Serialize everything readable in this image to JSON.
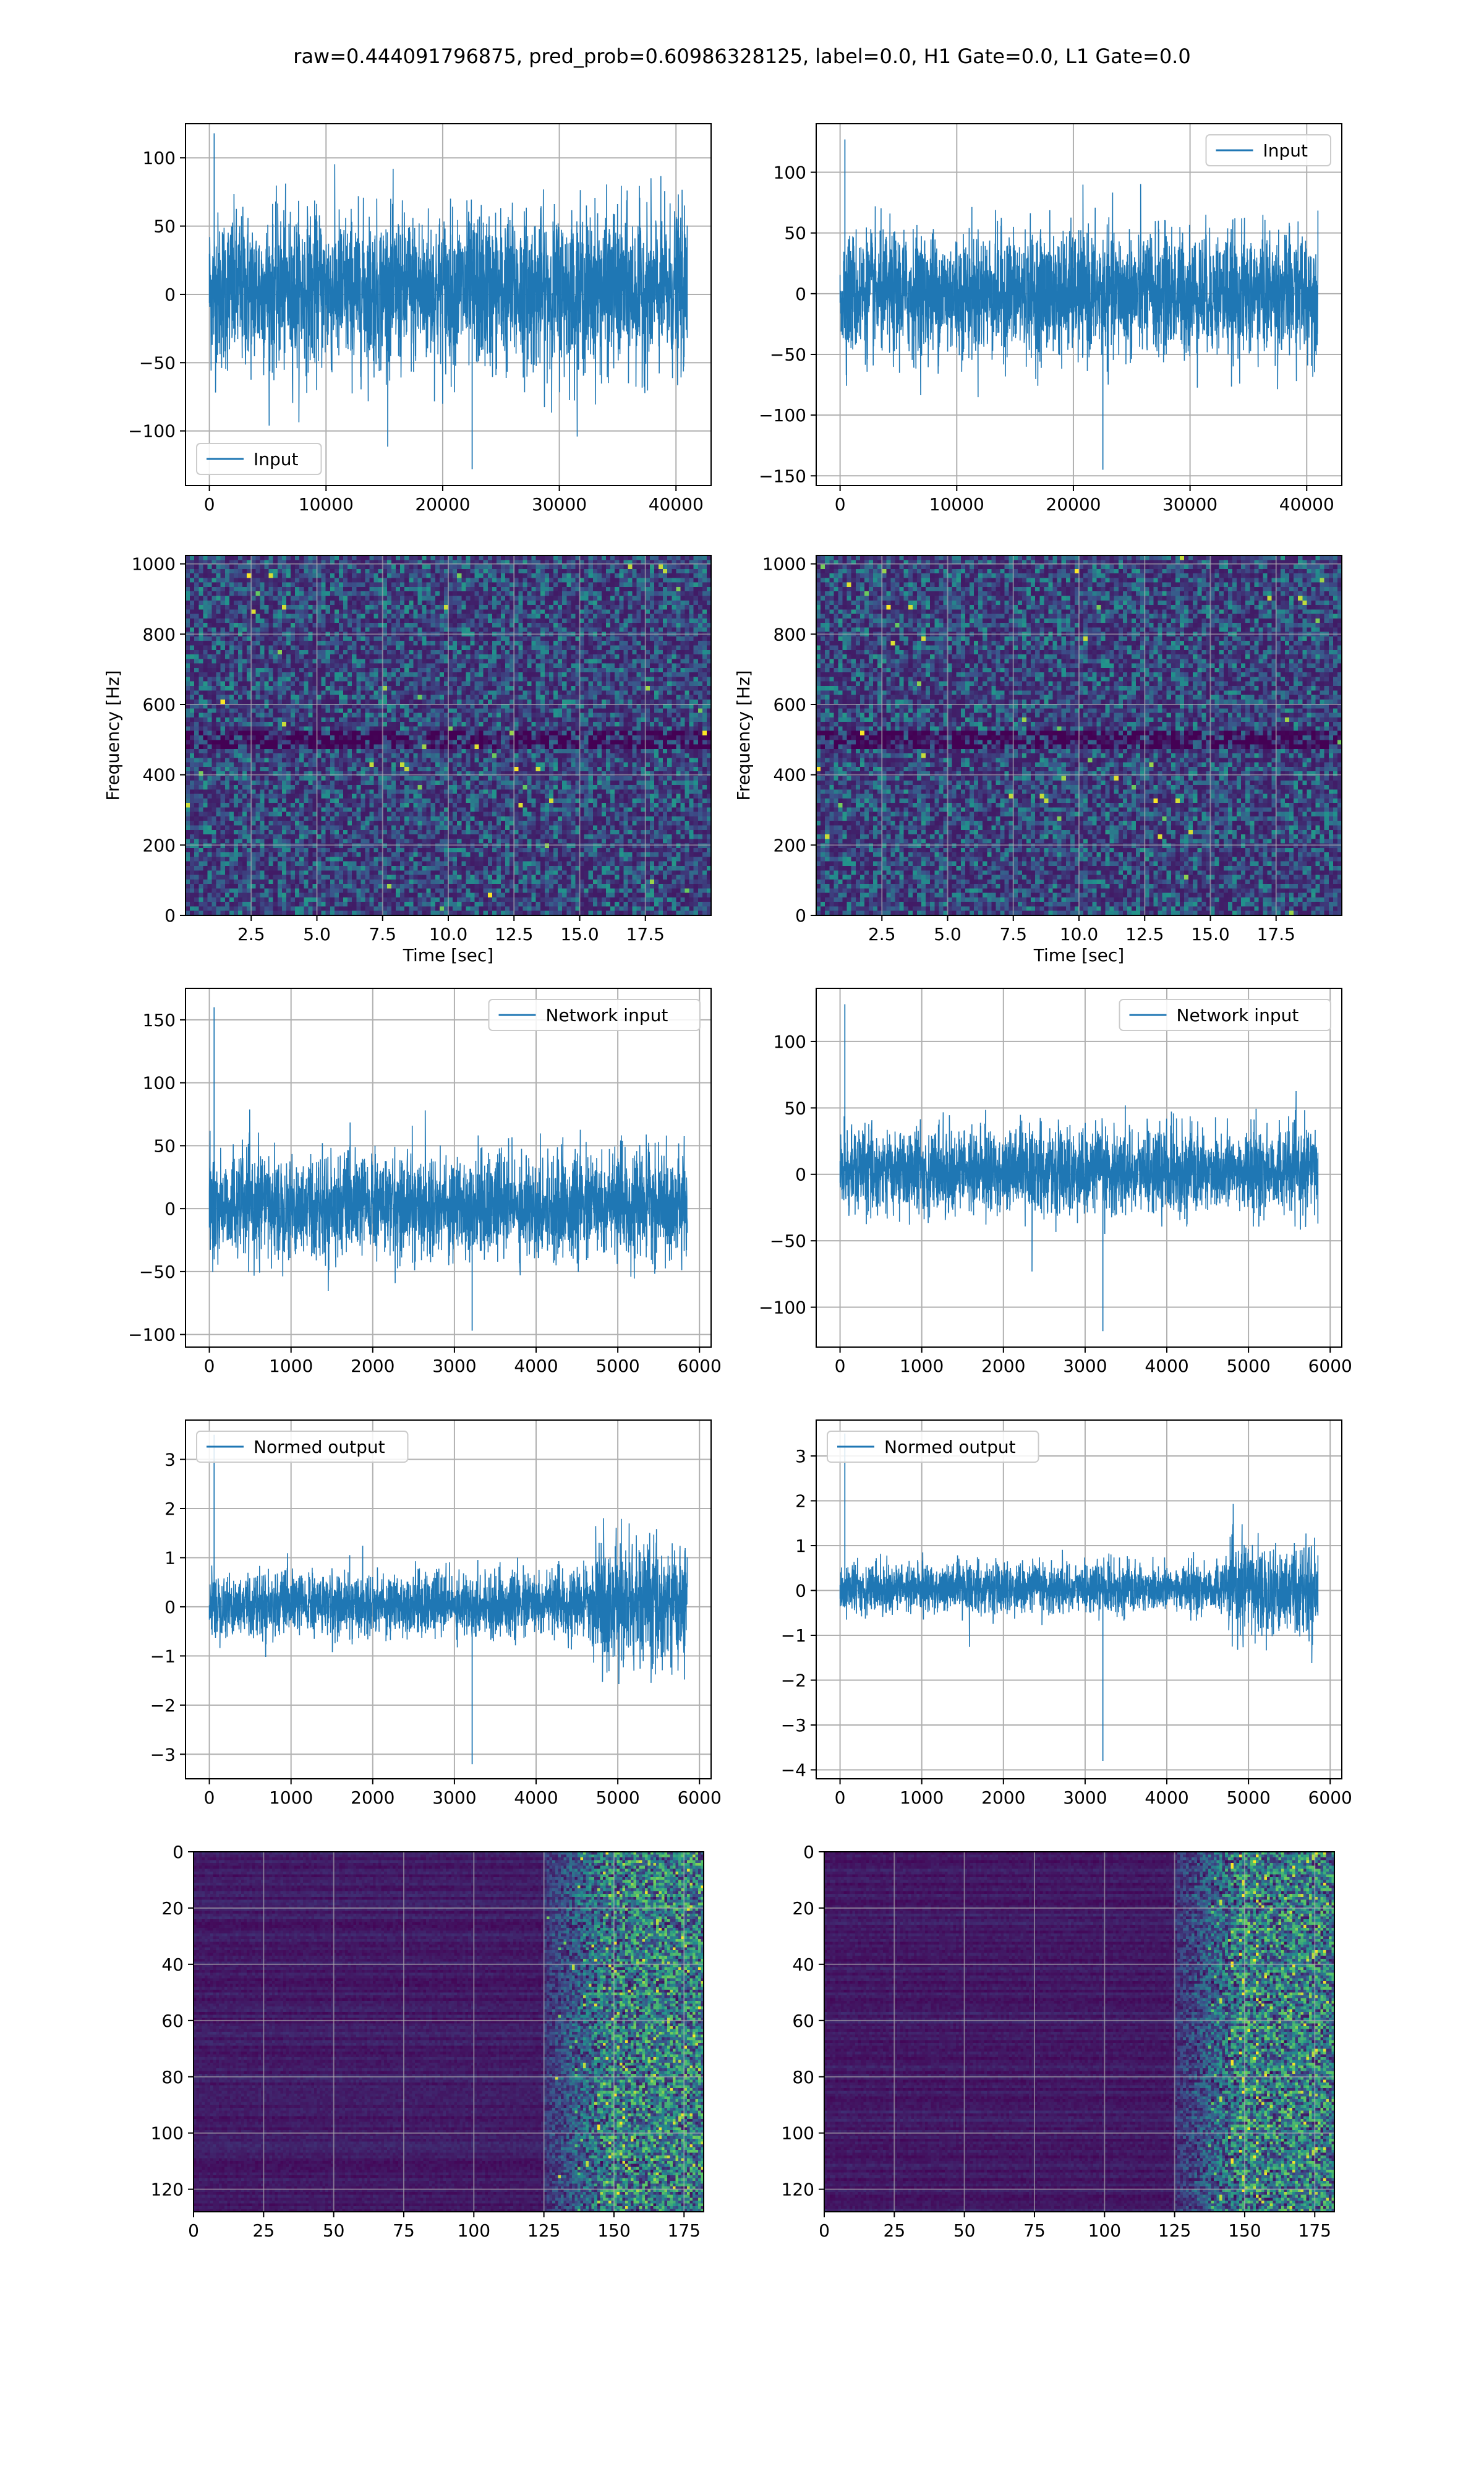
{
  "figure": {
    "suptitle": "raw=0.444091796875, pred_prob=0.60986328125, label=0.0, H1 Gate=0.0, L1 Gate=0.0",
    "line_color": "#1f77b4",
    "grid_color": "#b0b0b0"
  },
  "chart_data": [
    {
      "id": "input-h1",
      "type": "line",
      "title": "",
      "xlabel": "",
      "ylabel": "",
      "legend": {
        "label": "Input",
        "location": "lower-left"
      },
      "series": [
        {
          "name": "Input",
          "n_samples": 40960,
          "x_range": [
            0,
            40960
          ],
          "typical_amplitude": [
            -65,
            70
          ],
          "min": -128,
          "max": 118
        }
      ],
      "xlim": [
        -2048,
        43008
      ],
      "ylim": [
        -140,
        125
      ],
      "xticks": [
        0,
        10000,
        20000,
        30000,
        40000
      ],
      "yticks": [
        -100,
        -50,
        0,
        50,
        100
      ],
      "grid": true
    },
    {
      "id": "input-l1",
      "type": "line",
      "title": "",
      "xlabel": "",
      "ylabel": "",
      "legend": {
        "label": "Input",
        "location": "upper-right"
      },
      "series": [
        {
          "name": "Input",
          "n_samples": 40960,
          "x_range": [
            0,
            40960
          ],
          "typical_amplitude": [
            -60,
            60
          ],
          "min": -145,
          "max": 127
        }
      ],
      "xlim": [
        -2048,
        43008
      ],
      "ylim": [
        -158,
        140
      ],
      "xticks": [
        0,
        10000,
        20000,
        30000,
        40000
      ],
      "yticks": [
        -150,
        -100,
        -50,
        0,
        50,
        100
      ],
      "grid": true
    },
    {
      "id": "spectrogram-h1",
      "type": "heatmap",
      "title": "",
      "xlabel": "Time [sec]",
      "ylabel": "Frequency [Hz]",
      "xlim": [
        0,
        20
      ],
      "ylim": [
        0,
        1024
      ],
      "xticks": [
        2.5,
        5.0,
        7.5,
        10.0,
        12.5,
        15.0,
        17.5
      ],
      "xtick_labels": [
        "2.5",
        "5.0",
        "7.5",
        "10.0",
        "12.5",
        "15.0",
        "17.5"
      ],
      "yticks": [
        0,
        200,
        400,
        600,
        800,
        1000
      ],
      "colormap": "viridis",
      "grid": true,
      "cells": {
        "cols": 120,
        "rows": 80
      },
      "dark_band_hz": [
        470,
        520
      ]
    },
    {
      "id": "spectrogram-l1",
      "type": "heatmap",
      "title": "",
      "xlabel": "Time [sec]",
      "ylabel": "Frequency [Hz]",
      "xlim": [
        0,
        20
      ],
      "ylim": [
        0,
        1024
      ],
      "xticks": [
        2.5,
        5.0,
        7.5,
        10.0,
        12.5,
        15.0,
        17.5
      ],
      "xtick_labels": [
        "2.5",
        "5.0",
        "7.5",
        "10.0",
        "12.5",
        "15.0",
        "17.5"
      ],
      "yticks": [
        0,
        200,
        400,
        600,
        800,
        1000
      ],
      "colormap": "viridis",
      "grid": true,
      "cells": {
        "cols": 120,
        "rows": 80
      },
      "dark_band_hz": [
        470,
        520
      ]
    },
    {
      "id": "network-input-h1",
      "type": "line",
      "title": "",
      "xlabel": "",
      "ylabel": "",
      "legend": {
        "label": "Network input",
        "location": "upper-right"
      },
      "series": [
        {
          "name": "Network input",
          "n_samples": 5850,
          "x_range": [
            0,
            5850
          ],
          "typical_amplitude": [
            -45,
            50
          ],
          "min": -97,
          "max": 160
        }
      ],
      "xlim": [
        -292,
        6142
      ],
      "ylim": [
        -110,
        175
      ],
      "xticks": [
        0,
        1000,
        2000,
        3000,
        4000,
        5000,
        6000
      ],
      "yticks": [
        -100,
        -50,
        0,
        50,
        100,
        150
      ],
      "grid": true
    },
    {
      "id": "network-input-l1",
      "type": "line",
      "title": "",
      "xlabel": "",
      "ylabel": "",
      "legend": {
        "label": "Network input",
        "location": "upper-right"
      },
      "series": [
        {
          "name": "Network input",
          "n_samples": 5850,
          "x_range": [
            0,
            5850
          ],
          "typical_amplitude": [
            -35,
            40
          ],
          "min": -118,
          "max": 128
        }
      ],
      "xlim": [
        -292,
        6142
      ],
      "ylim": [
        -130,
        140
      ],
      "xticks": [
        0,
        1000,
        2000,
        3000,
        4000,
        5000,
        6000
      ],
      "yticks": [
        -100,
        -50,
        0,
        50,
        100
      ],
      "grid": true
    },
    {
      "id": "normed-output-h1",
      "type": "line",
      "title": "",
      "xlabel": "",
      "ylabel": "",
      "legend": {
        "label": "Normed output",
        "location": "upper-left"
      },
      "series": [
        {
          "name": "Normed output",
          "n_samples": 5850,
          "x_range": [
            0,
            5850
          ],
          "typical_amplitude": [
            -0.7,
            0.8
          ],
          "burst_start": 4700,
          "burst_amplitude": 2.0,
          "min": -3.2,
          "max": 3.5
        }
      ],
      "xlim": [
        -292,
        6142
      ],
      "ylim": [
        -3.5,
        3.8
      ],
      "xticks": [
        0,
        1000,
        2000,
        3000,
        4000,
        5000,
        6000
      ],
      "yticks": [
        -3,
        -2,
        -1,
        0,
        1,
        2,
        3
      ],
      "grid": true
    },
    {
      "id": "normed-output-l1",
      "type": "line",
      "title": "",
      "xlabel": "",
      "ylabel": "",
      "legend": {
        "label": "Normed output",
        "location": "upper-left"
      },
      "series": [
        {
          "name": "Normed output",
          "n_samples": 5850,
          "x_range": [
            0,
            5850
          ],
          "typical_amplitude": [
            -0.6,
            0.7
          ],
          "burst_start": 4750,
          "burst_amplitude": 1.8,
          "min": -3.8,
          "max": 3.5
        }
      ],
      "xlim": [
        -292,
        6142
      ],
      "ylim": [
        -4.2,
        3.8
      ],
      "xticks": [
        0,
        1000,
        2000,
        3000,
        4000,
        5000,
        6000
      ],
      "yticks": [
        -4,
        -3,
        -2,
        -1,
        0,
        1,
        2,
        3
      ],
      "grid": true
    },
    {
      "id": "feature-map-h1",
      "type": "heatmap",
      "title": "",
      "xlabel": "",
      "ylabel": "",
      "xlim": [
        0,
        182
      ],
      "ylim": [
        128,
        0
      ],
      "xticks": [
        0,
        25,
        50,
        75,
        100,
        125,
        150,
        175
      ],
      "yticks": [
        0,
        20,
        40,
        60,
        80,
        100,
        120
      ],
      "colormap": "viridis",
      "grid": true,
      "cells": {
        "cols": 182,
        "rows": 128
      },
      "bright_region_start": 125
    },
    {
      "id": "feature-map-l1",
      "type": "heatmap",
      "title": "",
      "xlabel": "",
      "ylabel": "",
      "xlim": [
        0,
        182
      ],
      "ylim": [
        128,
        0
      ],
      "xticks": [
        0,
        25,
        50,
        75,
        100,
        125,
        150,
        175
      ],
      "yticks": [
        0,
        20,
        40,
        60,
        80,
        100,
        120
      ],
      "colormap": "viridis",
      "grid": true,
      "cells": {
        "cols": 182,
        "rows": 128
      },
      "bright_region_start": 125
    }
  ]
}
